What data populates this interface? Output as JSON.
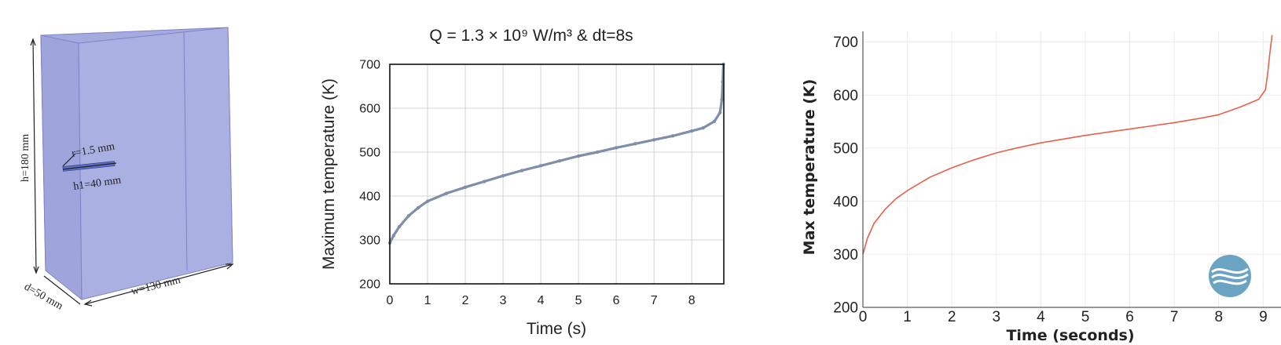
{
  "colors": {
    "box_fill": "#a6abdf",
    "box_edge": "#7c83c9",
    "series_mid": "#7f8fa8",
    "series_right": "#e8604a",
    "logo_bg": "#6ba4c2"
  },
  "diagram": {
    "dims": {
      "height": "h=180 mm",
      "depth": "d=50 mm",
      "width": "w=130 mm",
      "radius": "r=1.5 mm",
      "heater_length": "h1=40 mm"
    }
  },
  "chart_data": [
    {
      "type": "line",
      "title": "Q = 1.3 × 10⁹ W/m³  & dt=8s",
      "xlabel": "Time (s)",
      "ylabel": "Maximum temperature (K)",
      "xlim": [
        0,
        8.85
      ],
      "ylim": [
        200,
        700
      ],
      "xticks": [
        "0",
        "1",
        "2",
        "3",
        "4",
        "5",
        "6",
        "7",
        "8"
      ],
      "yticks": [
        "200",
        "300",
        "400",
        "500",
        "600",
        "700"
      ],
      "grid": true,
      "x": [
        0,
        0.1,
        0.25,
        0.5,
        0.75,
        1,
        1.5,
        2,
        2.5,
        3,
        3.5,
        4,
        4.5,
        5,
        5.5,
        6,
        6.5,
        7,
        7.5,
        8,
        8.3,
        8.6,
        8.75,
        8.8,
        8.82,
        8.84
      ],
      "y": [
        293,
        310,
        330,
        355,
        373,
        388,
        406,
        420,
        433,
        446,
        458,
        469,
        480,
        491,
        500,
        510,
        519,
        528,
        537,
        548,
        555,
        570,
        590,
        620,
        660,
        700
      ]
    },
    {
      "type": "line",
      "title": "",
      "xlabel": "Time (seconds)",
      "ylabel": "Max temperature (K)",
      "xlim": [
        0,
        9.4
      ],
      "ylim": [
        200,
        720
      ],
      "xticks": [
        "0",
        "1",
        "2",
        "3",
        "4",
        "5",
        "6",
        "7",
        "8",
        "9"
      ],
      "yticks": [
        "200",
        "300",
        "400",
        "500",
        "600",
        "700"
      ],
      "grid": true,
      "x": [
        0,
        0.1,
        0.25,
        0.5,
        0.75,
        1,
        1.5,
        2,
        2.5,
        3,
        3.5,
        4,
        4.5,
        5,
        5.5,
        6,
        6.5,
        7,
        7.5,
        8,
        8.5,
        8.9,
        9.05,
        9.1,
        9.15,
        9.2
      ],
      "y": [
        300,
        330,
        358,
        385,
        405,
        420,
        445,
        463,
        478,
        491,
        501,
        510,
        517,
        524,
        530,
        536,
        542,
        548,
        555,
        563,
        578,
        592,
        610,
        640,
        680,
        713
      ]
    }
  ]
}
